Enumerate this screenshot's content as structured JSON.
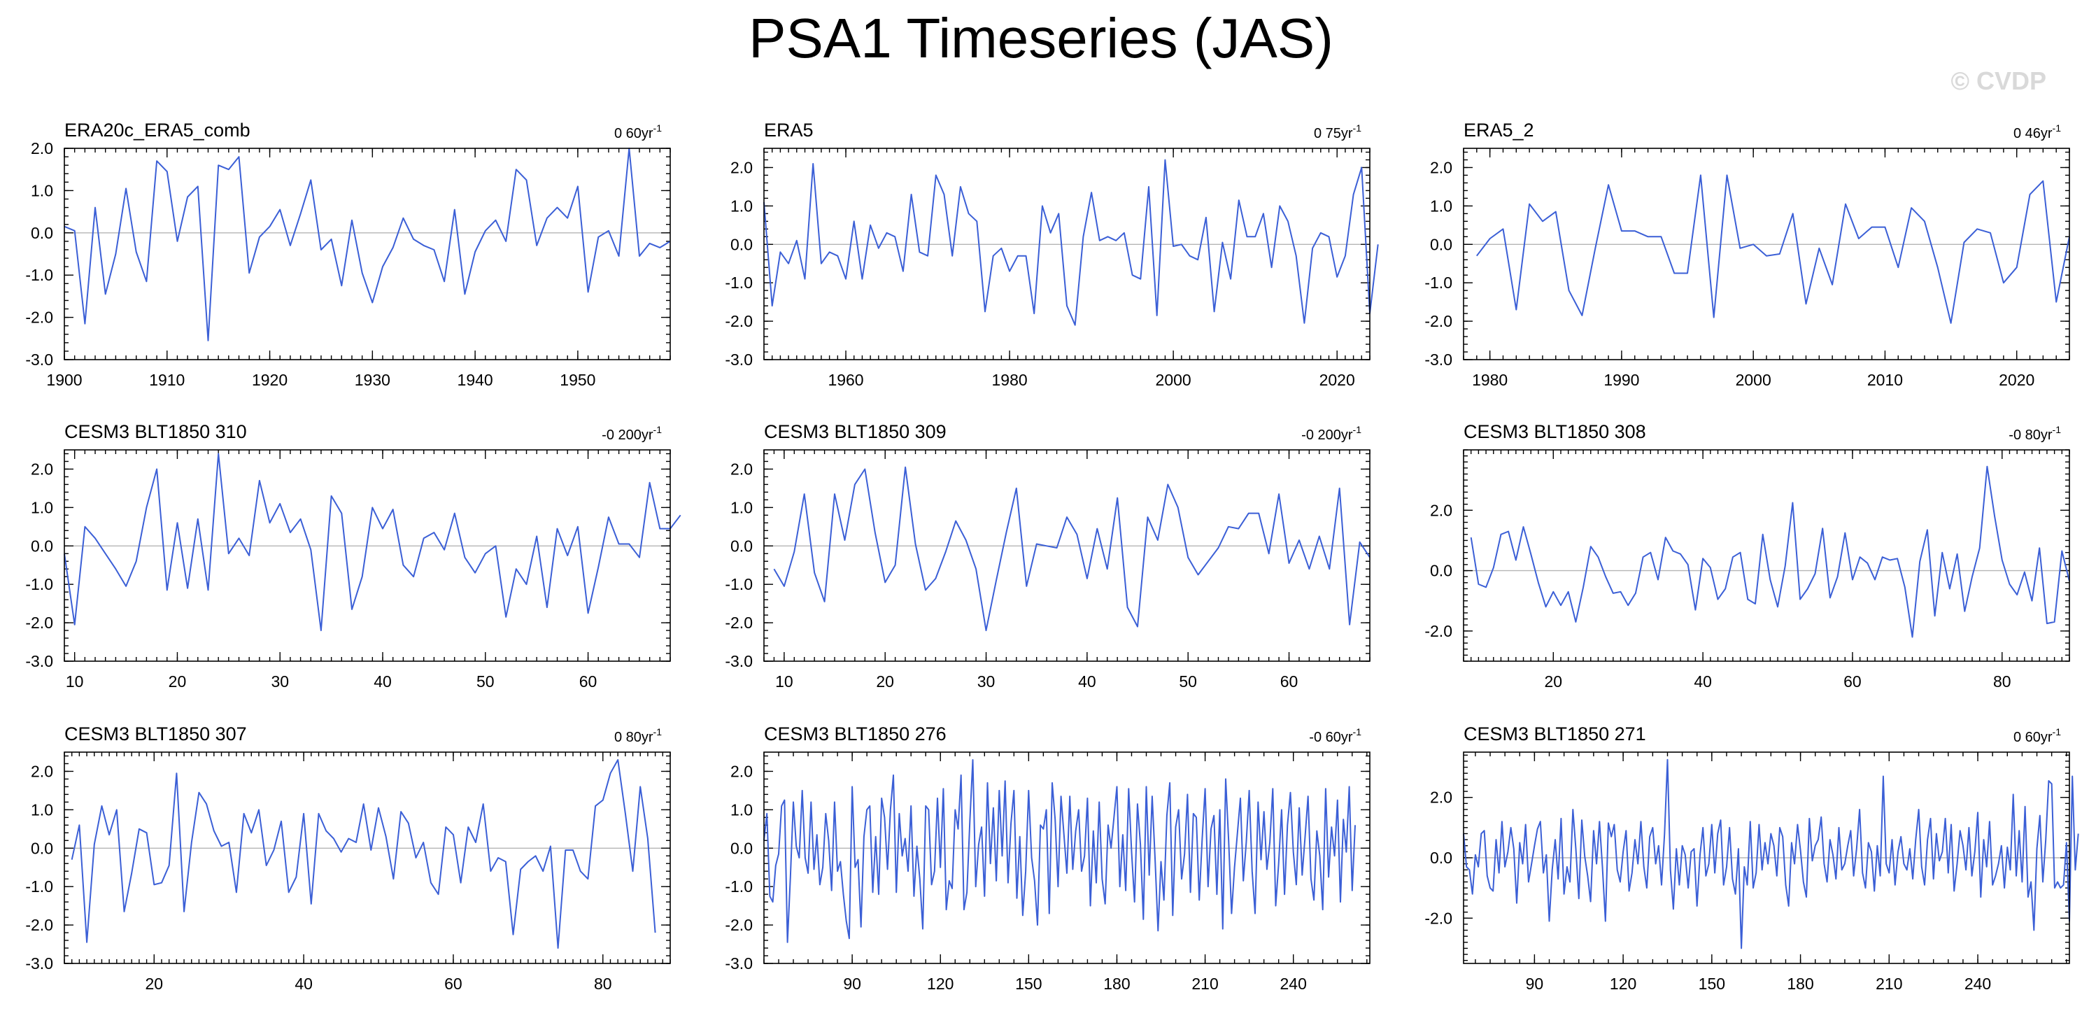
{
  "title": "PSA1 Timeseries (JAS)",
  "watermark": "© CVDP",
  "colors": {
    "line": "#3b5fd6",
    "zero": "#b5b5b5",
    "watermark": "#d9d9d9"
  },
  "chart_data": [
    {
      "type": "line",
      "title": "ERA20c_ERA5_comb",
      "trend": "0 60yr",
      "xlim": [
        1900,
        1959
      ],
      "ylim": [
        -3,
        2
      ],
      "xticks": [
        1900,
        1910,
        1920,
        1930,
        1940,
        1950
      ],
      "yticks": [
        -3,
        -2,
        -1,
        0,
        1,
        2
      ],
      "ytick_labels": [
        "-3.0",
        "-2.0",
        "-1.0",
        "0.0",
        "1.0",
        "2.0"
      ],
      "x_start": 1900,
      "values": [
        0.15,
        0.05,
        -2.15,
        0.6,
        -1.45,
        -0.5,
        1.05,
        -0.45,
        -1.15,
        1.7,
        1.45,
        -0.2,
        0.85,
        1.1,
        -2.55,
        1.6,
        1.5,
        1.8,
        -0.95,
        -0.1,
        0.15,
        0.55,
        -0.3,
        0.45,
        1.25,
        -0.4,
        -0.15,
        -1.25,
        0.3,
        -0.95,
        -1.65,
        -0.8,
        -0.35,
        0.35,
        -0.15,
        -0.3,
        -0.4,
        -1.15,
        0.55,
        -1.45,
        -0.45,
        0.05,
        0.3,
        -0.2,
        1.5,
        1.25,
        -0.3,
        0.35,
        0.6,
        0.35,
        1.1,
        -1.4,
        -0.1,
        0.05,
        -0.55,
        2.0,
        -0.55,
        -0.25,
        -0.35,
        -0.2
      ]
    },
    {
      "type": "line",
      "title": "ERA5",
      "trend": "0 75yr",
      "xlim": [
        1950,
        2024
      ],
      "ylim": [
        -3,
        2.5
      ],
      "xticks": [
        1960,
        1980,
        2000,
        2020
      ],
      "yticks": [
        -3,
        -2,
        -1,
        0,
        1,
        2
      ],
      "ytick_labels": [
        "-3.0",
        "-2.0",
        "-1.0",
        "0.0",
        "1.0",
        "2.0"
      ],
      "x_start": 1950,
      "values": [
        1.1,
        -1.6,
        -0.2,
        -0.5,
        0.1,
        -0.9,
        2.1,
        -0.5,
        -0.2,
        -0.3,
        -0.9,
        0.6,
        -0.9,
        0.5,
        -0.1,
        0.3,
        0.2,
        -0.7,
        1.3,
        -0.2,
        -0.3,
        1.8,
        1.3,
        -0.3,
        1.5,
        0.8,
        0.6,
        -1.75,
        -0.3,
        -0.1,
        -0.7,
        -0.3,
        -0.3,
        -1.8,
        1.0,
        0.3,
        0.8,
        -1.6,
        -2.1,
        0.2,
        1.35,
        0.1,
        0.2,
        0.1,
        0.3,
        -0.8,
        -0.9,
        1.5,
        -1.85,
        2.2,
        -0.05,
        0.0,
        -0.3,
        -0.4,
        0.7,
        -1.75,
        0.05,
        -0.9,
        1.15,
        0.2,
        0.2,
        0.8,
        -0.6,
        1.0,
        0.6,
        -0.3,
        -2.05,
        -0.1,
        0.3,
        0.2,
        -0.85,
        -0.3,
        1.3,
        2.0,
        -1.8,
        0.0
      ]
    },
    {
      "type": "line",
      "title": "ERA5_2",
      "trend": "0 46yr",
      "xlim": [
        1978,
        2024
      ],
      "ylim": [
        -3,
        2.5
      ],
      "xticks": [
        1980,
        1990,
        2000,
        2010,
        2020
      ],
      "yticks": [
        -3,
        -2,
        -1,
        0,
        1,
        2
      ],
      "ytick_labels": [
        "-3.0",
        "-2.0",
        "-1.0",
        "0.0",
        "1.0",
        "2.0"
      ],
      "x_start": 1979,
      "values": [
        -0.3,
        0.15,
        0.4,
        -1.7,
        1.05,
        0.6,
        0.85,
        -1.2,
        -1.85,
        -0.1,
        1.55,
        0.35,
        0.35,
        0.2,
        0.2,
        -0.75,
        -0.75,
        1.8,
        -1.9,
        1.8,
        -0.1,
        0.0,
        -0.3,
        -0.25,
        0.8,
        -1.55,
        -0.1,
        -1.05,
        1.05,
        0.15,
        0.45,
        0.45,
        -0.6,
        0.95,
        0.6,
        -0.6,
        -2.05,
        0.05,
        0.4,
        0.3,
        -1.0,
        -0.6,
        1.3,
        1.65,
        -1.5,
        0.2
      ]
    },
    {
      "type": "line",
      "title": "CESM3 BLT1850 310",
      "trend": "-0 200yr",
      "xlim": [
        9,
        68
      ],
      "ylim": [
        -3,
        2.5
      ],
      "xticks": [
        10,
        20,
        30,
        40,
        50,
        60
      ],
      "yticks": [
        -3,
        -2,
        -1,
        0,
        1,
        2
      ],
      "ytick_labels": [
        "-3.0",
        "-2.0",
        "-1.0",
        "0.0",
        "1.0",
        "2.0"
      ],
      "x_start": 9,
      "values": [
        -0.2,
        -2.05,
        0.5,
        0.2,
        -0.2,
        -0.6,
        -1.05,
        -0.4,
        1.0,
        2.0,
        -1.15,
        0.6,
        -1.1,
        0.7,
        -1.15,
        2.4,
        -0.2,
        0.2,
        -0.25,
        1.7,
        0.6,
        1.1,
        0.35,
        0.7,
        -0.1,
        -2.2,
        1.3,
        0.85,
        -1.65,
        -0.8,
        1.0,
        0.45,
        0.95,
        -0.5,
        -0.8,
        0.2,
        0.35,
        -0.1,
        0.85,
        -0.3,
        -0.7,
        -0.2,
        0.0,
        -1.85,
        -0.6,
        -1.0,
        0.25,
        -1.6,
        0.45,
        -0.25,
        0.5,
        -1.75,
        -0.55,
        0.75,
        0.05,
        0.05,
        -0.3,
        1.65,
        0.45,
        0.45,
        0.8
      ]
    },
    {
      "type": "line",
      "title": "CESM3 BLT1850 309",
      "trend": "-0 200yr",
      "xlim": [
        8,
        68
      ],
      "ylim": [
        -3,
        2.5
      ],
      "xticks": [
        10,
        20,
        30,
        40,
        50,
        60
      ],
      "yticks": [
        -3,
        -2,
        -1,
        0,
        1,
        2
      ],
      "ytick_labels": [
        "-3.0",
        "-2.0",
        "-1.0",
        "0.0",
        "1.0",
        "2.0"
      ],
      "x_start": 9,
      "values": [
        -0.6,
        -1.05,
        -0.15,
        1.35,
        -0.7,
        -1.45,
        1.35,
        0.15,
        1.6,
        2.0,
        0.35,
        -0.95,
        -0.5,
        2.05,
        0.05,
        -1.15,
        -0.85,
        -0.15,
        0.65,
        0.15,
        -0.6,
        -2.2,
        -0.9,
        0.35,
        1.5,
        -1.05,
        0.05,
        0.0,
        -0.05,
        0.75,
        0.3,
        -0.85,
        0.45,
        -0.6,
        1.25,
        -1.6,
        -2.1,
        0.75,
        0.15,
        1.6,
        1.0,
        -0.3,
        -0.75,
        -0.4,
        -0.05,
        0.5,
        0.45,
        0.85,
        0.85,
        -0.2,
        1.35,
        -0.45,
        0.15,
        -0.6,
        0.25,
        -0.6,
        1.5,
        -2.05,
        0.1,
        -0.3
      ]
    },
    {
      "type": "line",
      "title": "CESM3 BLT1850 308",
      "trend": "-0 80yr",
      "xlim": [
        8,
        89
      ],
      "ylim": [
        -3,
        4
      ],
      "xticks": [
        20,
        40,
        60,
        80
      ],
      "yticks": [
        -2,
        0,
        2
      ],
      "ytick_labels": [
        "-2.0",
        "0.0",
        "2.0"
      ],
      "x_start": 9,
      "values": [
        1.1,
        -0.45,
        -0.55,
        0.1,
        1.2,
        1.3,
        0.35,
        1.45,
        0.55,
        -0.4,
        -1.2,
        -0.7,
        -1.15,
        -0.7,
        -1.7,
        -0.55,
        0.8,
        0.45,
        -0.2,
        -0.75,
        -0.7,
        -1.15,
        -0.75,
        0.45,
        0.6,
        -0.3,
        1.1,
        0.65,
        0.55,
        0.2,
        -1.3,
        0.4,
        0.1,
        -0.95,
        -0.6,
        0.45,
        0.6,
        -0.95,
        -1.1,
        1.2,
        -0.3,
        -1.2,
        0.15,
        2.25,
        -0.95,
        -0.6,
        -0.1,
        1.4,
        -0.9,
        -0.2,
        1.25,
        -0.3,
        0.45,
        0.25,
        -0.3,
        0.45,
        0.35,
        0.4,
        -0.55,
        -2.2,
        0.3,
        1.35,
        -1.5,
        0.6,
        -0.6,
        0.55,
        -1.35,
        -0.2,
        0.75,
        3.45,
        1.8,
        0.35,
        -0.45,
        -0.8,
        -0.05,
        -1.0,
        0.75,
        -1.75,
        -1.7,
        0.65,
        -0.35
      ]
    },
    {
      "type": "line",
      "title": "CESM3 BLT1850 307",
      "trend": "0 80yr",
      "xlim": [
        8,
        89
      ],
      "ylim": [
        -3,
        2.5
      ],
      "xticks": [
        20,
        40,
        60,
        80
      ],
      "yticks": [
        -3,
        -2,
        -1,
        0,
        1,
        2
      ],
      "ytick_labels": [
        "-3.0",
        "-2.0",
        "-1.0",
        "0.0",
        "1.0",
        "2.0"
      ],
      "x_start": 9,
      "values": [
        -0.3,
        0.6,
        -2.45,
        0.1,
        1.1,
        0.35,
        1.0,
        -1.65,
        -0.65,
        0.5,
        0.4,
        -0.95,
        -0.9,
        -0.45,
        1.95,
        -1.65,
        0.15,
        1.45,
        1.15,
        0.45,
        0.05,
        0.15,
        -1.15,
        0.9,
        0.4,
        1.0,
        -0.45,
        -0.05,
        0.7,
        -1.15,
        -0.75,
        0.9,
        -1.45,
        0.9,
        0.45,
        0.25,
        -0.1,
        0.25,
        0.15,
        1.15,
        -0.05,
        1.05,
        0.3,
        -0.8,
        0.95,
        0.65,
        -0.25,
        0.15,
        -0.9,
        -1.2,
        0.55,
        0.35,
        -0.9,
        0.55,
        0.15,
        1.15,
        -0.6,
        -0.25,
        -0.35,
        -2.25,
        -0.55,
        -0.35,
        -0.2,
        -0.6,
        0.05,
        -2.6,
        -0.05,
        -0.05,
        -0.6,
        -0.8,
        1.1,
        1.25,
        1.95,
        2.3,
        0.9,
        -0.6,
        1.6,
        0.25,
        -2.2
      ]
    },
    {
      "type": "line",
      "title": "CESM3 BLT1850 276",
      "trend": "-0 60yr",
      "xlim": [
        60,
        266
      ],
      "ylim": [
        -3,
        2.5
      ],
      "xticks": [
        90,
        120,
        150,
        180,
        210,
        240
      ],
      "yticks": [
        -3,
        -2,
        -1,
        0,
        1,
        2
      ],
      "ytick_labels": [
        "-3.0",
        "-2.0",
        "-1.0",
        "0.0",
        "1.0",
        "2.0"
      ],
      "x_start": 60,
      "values": [
        0.2,
        0.9,
        -1.25,
        -1.4,
        -0.45,
        -0.15,
        1.1,
        1.25,
        -2.45,
        -0.75,
        1.2,
        0.05,
        -0.25,
        1.5,
        -0.25,
        -0.65,
        1.2,
        -0.55,
        0.35,
        -0.95,
        -0.5,
        0.9,
        0.2,
        -1.1,
        1.2,
        -0.6,
        -0.35,
        -1.2,
        -1.9,
        -2.35,
        1.6,
        -0.5,
        -0.3,
        -2.05,
        0.3,
        1.0,
        1.1,
        -1.15,
        0.3,
        -1.2,
        1.3,
        0.8,
        -0.55,
        1.0,
        1.9,
        -1.15,
        0.9,
        -0.2,
        0.25,
        -0.6,
        1.1,
        -1.25,
        0.05,
        -0.8,
        -2.1,
        1.1,
        1.0,
        -0.95,
        -0.6,
        1.3,
        -0.5,
        1.55,
        -1.6,
        -0.85,
        -1.05,
        1.0,
        0.5,
        1.9,
        -1.6,
        -1.15,
        0.7,
        2.3,
        -1.0,
        0.1,
        0.55,
        -1.25,
        1.7,
        -0.4,
        1.05,
        -0.85,
        1.5,
        -0.2,
        1.75,
        -0.9,
        0.65,
        1.5,
        -1.3,
        0.3,
        -1.75,
        -0.6,
        1.5,
        -0.25,
        -0.85,
        -2.0,
        0.6,
        0.5,
        1.0,
        -1.7,
        1.7,
        0.75,
        -1.0,
        1.35,
        0.35,
        -0.65,
        1.35,
        -0.55,
        0.45,
        1.0,
        -0.6,
        -0.2,
        1.3,
        -1.5,
        0.45,
        -0.9,
        1.2,
        -0.8,
        -1.45,
        0.6,
        0.0,
        0.8,
        1.6,
        -1.0,
        0.35,
        -1.1,
        1.55,
        -0.1,
        -1.4,
        1.15,
        0.1,
        -1.85,
        1.6,
        -0.7,
        1.35,
        -0.3,
        -2.15,
        -0.35,
        -1.35,
        0.85,
        1.7,
        -1.75,
        0.55,
        1.0,
        -0.8,
        -0.15,
        1.4,
        -1.15,
        0.9,
        0.8,
        -1.35,
        0.25,
        1.55,
        -1.0,
        0.5,
        0.85,
        -1.2,
        1.0,
        -2.1,
        1.8,
        0.2,
        -1.7,
        -0.5,
        0.4,
        1.3,
        -0.85,
        0.15,
        1.5,
        -0.6,
        -1.7,
        1.2,
        -0.3,
        0.95,
        -0.55,
        0.15,
        1.55,
        -1.5,
        -0.4,
        1.0,
        -1.2,
        0.6,
        1.45,
        -0.1,
        -0.95,
        1.05,
        -0.7,
        0.3,
        1.35,
        -0.8,
        -1.35,
        0.45,
        -0.2,
        -1.6,
        1.55,
        -0.75,
        0.55,
        -0.2,
        1.25,
        -1.4,
        0.75,
        -0.1,
        1.6,
        -1.1,
        0.6
      ]
    },
    {
      "type": "line",
      "title": "CESM3 BLT1850 271",
      "trend": "0 60yr",
      "xlim": [
        66,
        271
      ],
      "ylim": [
        -3.5,
        3.5
      ],
      "xticks": [
        90,
        120,
        150,
        180,
        210,
        240
      ],
      "yticks": [
        -2,
        0,
        2
      ],
      "ytick_labels": [
        "-2.0",
        "0.0",
        "2.0"
      ],
      "x_start": 66,
      "values": [
        0.8,
        -0.3,
        -0.4,
        -1.2,
        0.1,
        -0.3,
        0.8,
        0.9,
        -0.6,
        -1.0,
        -1.1,
        0.6,
        -0.5,
        1.2,
        -0.3,
        0.2,
        1.0,
        0.3,
        -1.5,
        0.5,
        -0.2,
        1.1,
        -0.8,
        -0.2,
        0.4,
        0.95,
        1.2,
        -0.5,
        0.1,
        -2.1,
        -0.4,
        0.6,
        -0.7,
        1.3,
        -1.2,
        -0.3,
        -0.8,
        1.6,
        0.3,
        -1.35,
        1.25,
        0.05,
        -0.6,
        -1.45,
        0.9,
        -0.2,
        1.2,
        -0.3,
        -2.1,
        1.15,
        0.7,
        1.1,
        -0.4,
        -0.8,
        0.2,
        0.9,
        -1.1,
        -0.5,
        0.6,
        -0.2,
        1.2,
        -0.3,
        -1.0,
        0.7,
        1.0,
        -0.2,
        0.4,
        -0.9,
        0.8,
        3.25,
        -0.4,
        -1.7,
        0.3,
        -0.9,
        0.4,
        0.1,
        -1.0,
        0.2,
        0.3,
        -1.6,
        0.1,
        1.0,
        -0.6,
        -0.2,
        1.1,
        -0.5,
        0.8,
        1.25,
        -0.9,
        -0.3,
        1.0,
        -0.7,
        -1.2,
        0.3,
        -3.0,
        -0.3,
        -0.9,
        1.2,
        -1.0,
        -0.5,
        1.1,
        -0.4,
        0.5,
        -0.2,
        0.8,
        0.4,
        -0.6,
        1.0,
        0.7,
        -0.9,
        -1.6,
        0.5,
        -0.2,
        1.1,
        0.25,
        -0.8,
        -1.3,
        1.3,
        -0.1,
        0.4,
        0.6,
        1.35,
        -0.2,
        -0.8,
        0.6,
        0.1,
        -0.7,
        1.0,
        -0.4,
        -0.2,
        0.4,
        0.9,
        -0.6,
        0.3,
        1.6,
        -0.5,
        -1.0,
        0.5,
        0.2,
        -1.1,
        0.4,
        -0.6,
        2.7,
        -0.2,
        -0.5,
        0.6,
        -0.9,
        0.2,
        0.7,
        -0.2,
        -0.4,
        0.3,
        -0.7,
        0.6,
        1.6,
        -0.3,
        -0.9,
        0.6,
        1.3,
        -0.7,
        0.8,
        -0.1,
        0.2,
        1.3,
        -0.5,
        1.1,
        -1.1,
        -0.2,
        0.9,
        0.4,
        -0.4,
        1.0,
        -0.6,
        0.2,
        1.5,
        -1.3,
        0.6,
        -0.3,
        1.2,
        -0.9,
        -0.6,
        -0.2,
        0.4,
        -1.0,
        0.35,
        -0.4,
        2.1,
        -0.6,
        0.9,
        -0.8,
        1.7,
        -1.3,
        -0.8,
        -2.4,
        0.3,
        1.4,
        -0.8,
        0.6,
        2.55,
        2.45,
        -1.0,
        -0.8,
        -1.0,
        -0.9,
        0.5,
        -2.1,
        2.7,
        -0.4,
        0.8
      ]
    }
  ]
}
